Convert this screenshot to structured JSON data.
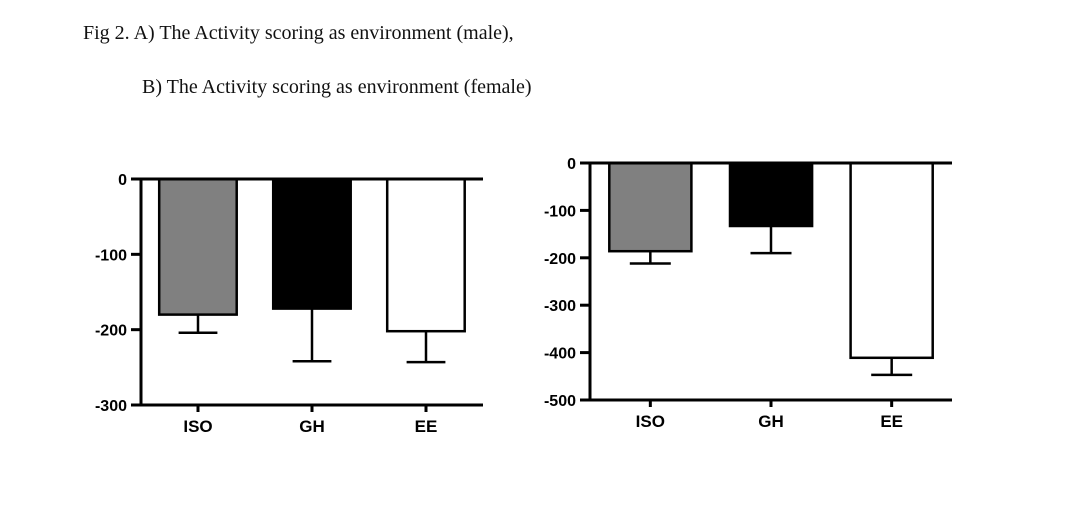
{
  "figure": {
    "caption_line1": "Fig 2. A) The Activity scoring as environment (male),",
    "caption_line2": "B) The Activity scoring as environment (female)"
  },
  "colors": {
    "axis": "#000000",
    "background": "#ffffff",
    "bar_gray": "#808080",
    "bar_black": "#000000",
    "bar_white": "#ffffff"
  },
  "chart_data": [
    {
      "id": "A",
      "type": "bar",
      "title": "The Activity scoring as environment (male)",
      "categories": [
        "ISO",
        "GH",
        "EE"
      ],
      "values": [
        -180,
        -172,
        -202
      ],
      "errors": [
        24,
        70,
        41
      ],
      "error_direction": "down",
      "bar_colors": [
        "#808080",
        "#000000",
        "#ffffff"
      ],
      "ylim": [
        -300,
        0
      ],
      "yticks": [
        0,
        -100,
        -200,
        -300
      ],
      "xlabel": "",
      "ylabel": "",
      "grid": false,
      "legend": false
    },
    {
      "id": "B",
      "type": "bar",
      "title": "The Activity scoring as environment (female)",
      "categories": [
        "ISO",
        "GH",
        "EE"
      ],
      "values": [
        -186,
        -133,
        -411
      ],
      "errors": [
        26,
        57,
        36
      ],
      "error_direction": "down",
      "bar_colors": [
        "#808080",
        "#000000",
        "#ffffff"
      ],
      "ylim": [
        -500,
        0
      ],
      "yticks": [
        0,
        -100,
        -200,
        -300,
        -400,
        -500
      ],
      "xlabel": "",
      "ylabel": "",
      "grid": false,
      "legend": false
    }
  ]
}
